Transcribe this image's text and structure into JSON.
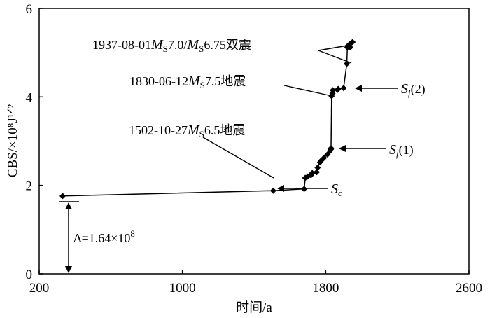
{
  "chart_data": {
    "type": "line",
    "xlabel": "时间/a",
    "ylabel": "CBS/×10⁸J¹ᐟ²",
    "xlim": [
      200,
      2600
    ],
    "ylim": [
      0,
      6
    ],
    "xticks": [
      "200",
      "1000",
      "1800",
      "2600"
    ],
    "yticks": [
      "0",
      "2",
      "4",
      "6"
    ],
    "grid": false,
    "series": [
      {
        "x": [
          331,
          1507,
          1680,
          1686,
          1700,
          1718,
          1725,
          1750,
          1755,
          1768,
          1775,
          1790,
          1810,
          1825,
          1830,
          1830,
          1833,
          1838,
          1840,
          1866,
          1870,
          1900,
          1918,
          1921,
          1925,
          1937,
          1937,
          1950
        ],
        "y": [
          1.76,
          1.88,
          1.92,
          2.17,
          2.2,
          2.23,
          2.28,
          2.3,
          2.4,
          2.52,
          2.56,
          2.62,
          2.7,
          2.78,
          2.82,
          2.84,
          4.02,
          4.08,
          4.15,
          4.16,
          4.18,
          4.2,
          4.75,
          5.12,
          5.16,
          5.2,
          5.12,
          5.24
        ]
      }
    ],
    "annotations": {
      "eq1937": {
        "pre": "1937-08-01",
        "m": "M",
        "s": "S",
        "mag1": "7.0/",
        "m2": "M",
        "s2": "S",
        "mag2": "6.75双震"
      },
      "eq1830": {
        "pre": "1830-06-12",
        "m": "M",
        "s": "S",
        "mag": "7.5地震"
      },
      "eq1502": {
        "pre": "1502-10-27",
        "m": "M",
        "s": "S",
        "mag": "6.5地震"
      },
      "sf2": {
        "s": "S",
        "f": "f",
        "rest": "(2)"
      },
      "sf1": {
        "s": "S",
        "f": "f",
        "rest": "(1)"
      },
      "sc": {
        "s": "S",
        "c": "c"
      },
      "delta": {
        "text": "Δ=1.64×10",
        "sup": "8"
      }
    }
  }
}
